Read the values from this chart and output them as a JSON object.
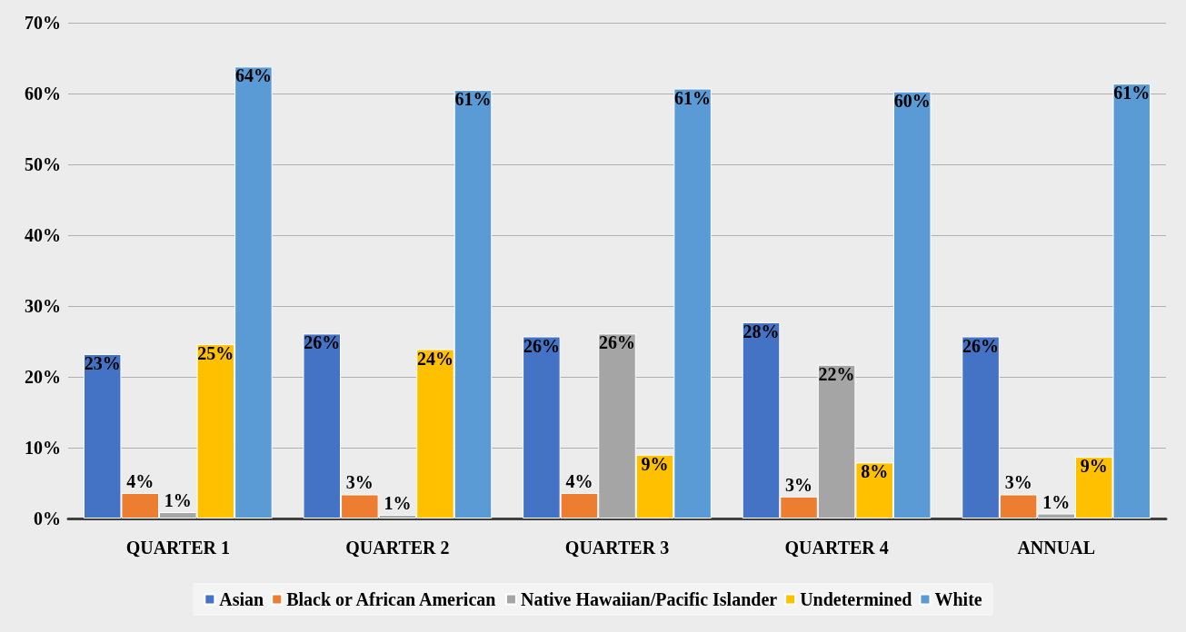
{
  "chart_data": {
    "type": "bar",
    "categories": [
      "QUARTER 1",
      "QUARTER 2",
      "QUARTER 3",
      "QUARTER 4",
      "ANNUAL"
    ],
    "series": [
      {
        "name": "Asian",
        "color": "#4472c4",
        "values": [
          23.2,
          26.1,
          25.7,
          27.7,
          25.7
        ],
        "value_labels": [
          "23%",
          "26%",
          "26%",
          "28%",
          "26%"
        ]
      },
      {
        "name": "Black or African American",
        "color": "#ed7d31",
        "values": [
          3.6,
          3.4,
          3.6,
          3.1,
          3.4
        ],
        "value_labels": [
          "4%",
          "3%",
          "4%",
          "3%",
          "3%"
        ]
      },
      {
        "name": "Native Hawaiian/Pacific Islander",
        "color": "#a5a5a5",
        "values": [
          0.9,
          0.5,
          26.1,
          21.7,
          0.7
        ],
        "value_labels": [
          "1%",
          "1%",
          "26%",
          "22%",
          "1%"
        ]
      },
      {
        "name": "Undetermined",
        "color": "#ffc000",
        "values": [
          24.6,
          23.9,
          9.0,
          7.9,
          8.7
        ],
        "value_labels": [
          "25%",
          "24%",
          "9%",
          "8%",
          "9%"
        ]
      },
      {
        "name": "White",
        "color": "#5b9bd5",
        "values": [
          63.8,
          60.5,
          60.7,
          60.3,
          61.4
        ],
        "value_labels": [
          "64%",
          "61%",
          "61%",
          "60%",
          "61%"
        ]
      }
    ],
    "ylim": [
      0,
      70
    ],
    "yticks": [
      {
        "value": 0,
        "label": "0%"
      },
      {
        "value": 10,
        "label": "10%"
      },
      {
        "value": 20,
        "label": "20%"
      },
      {
        "value": 30,
        "label": "30%"
      },
      {
        "value": 40,
        "label": "40%"
      },
      {
        "value": 50,
        "label": "50%"
      },
      {
        "value": 60,
        "label": "60%"
      },
      {
        "value": 70,
        "label": "70%"
      }
    ],
    "grid": "y",
    "legend": "bottom"
  }
}
